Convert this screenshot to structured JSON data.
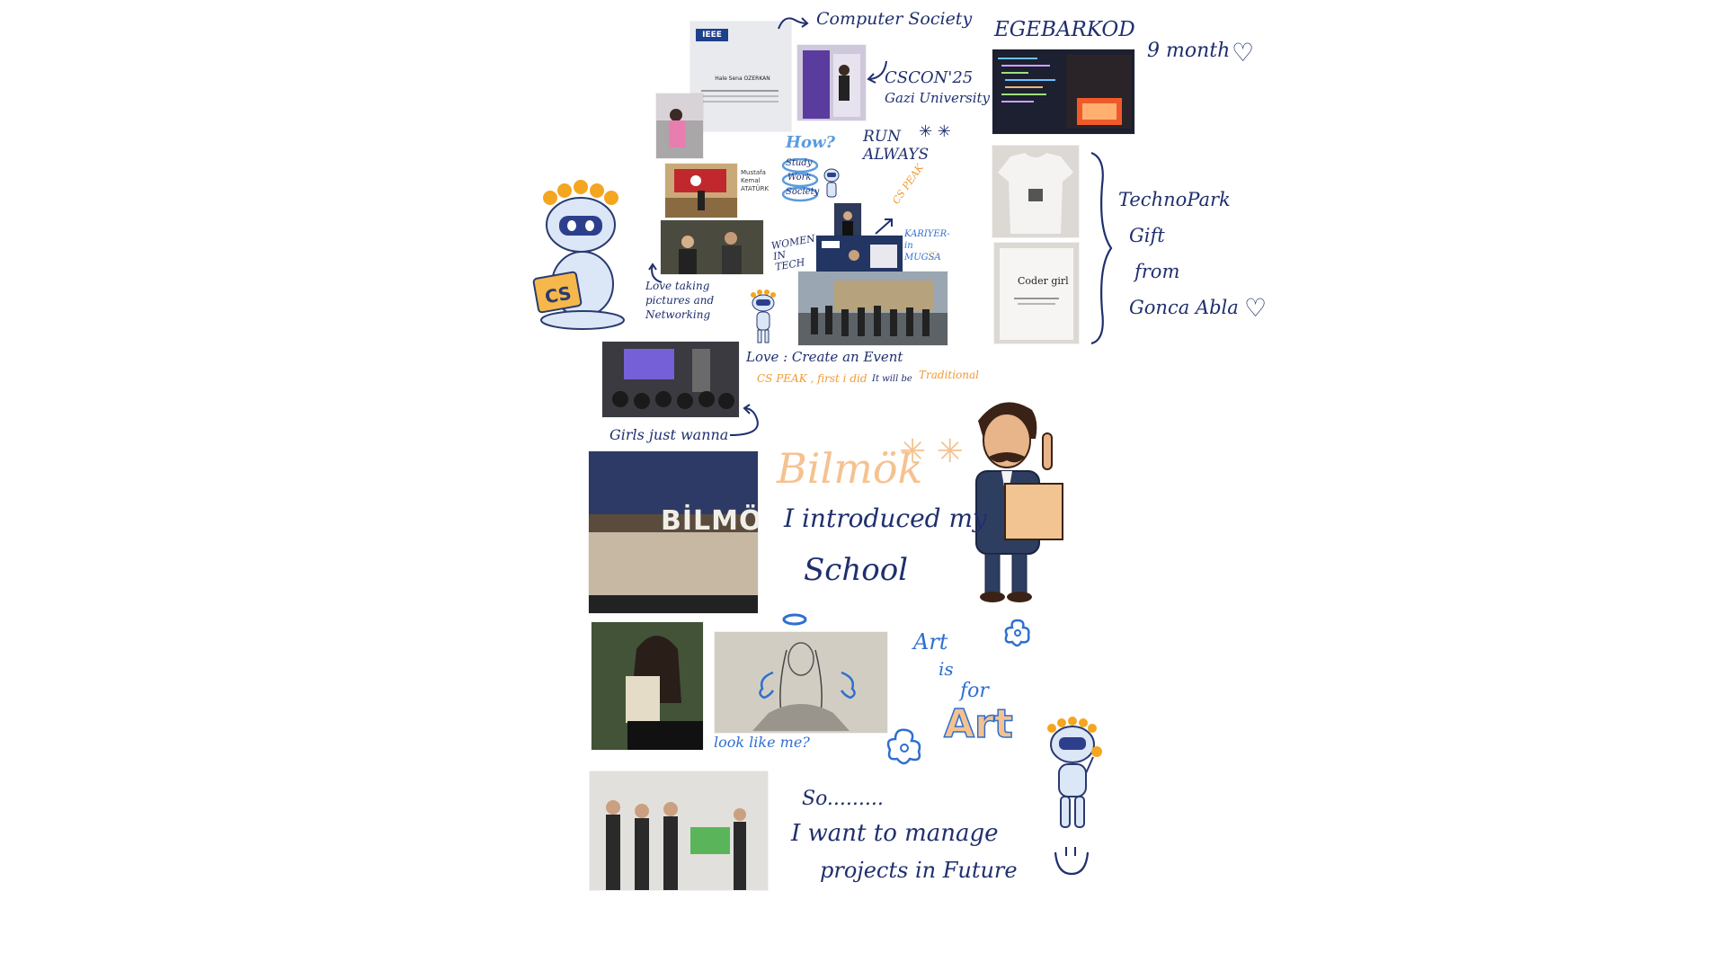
{
  "notes": {
    "computer_society": "Computer Society",
    "cscon": "CSCON'25",
    "gazi": "Gazi University",
    "how": "How?",
    "run_always": "RUN ALWAYS",
    "study": "Study",
    "work": "Work",
    "society": "Society",
    "cspeak_small": "CS PEAK",
    "women_in_tech": "WOMEN IN TECH",
    "kariyer": "KARIYER-in MUGSA",
    "love_pictures": "Love taking pictures and Networking",
    "love_event": "Love : Create an Event",
    "cspeak_first": "CS PEAK , first i did",
    "it_will_be": "It will be",
    "traditional": "Traditional",
    "girls": "Girls just wanna",
    "egebarkod": "EGEBARKOD",
    "nine_month": "9 month",
    "technopark": "TechnoPark",
    "gift": "Gift",
    "from": "from",
    "gonca": "Gonca Abla",
    "bilmok": "Bilmök",
    "introduced": "I introduced my",
    "school": "School",
    "art": "Art",
    "is": "is",
    "for": "for",
    "art_big": "Art",
    "look_like": "look like me?",
    "so": "So.........",
    "manage": "I want to manage",
    "projects": "projects in Future"
  },
  "photos": {
    "ieee_cert_badge": "IEEE",
    "ieee_cert_name": "Hale Sena OZERKAN",
    "bilmok_sign": "BİLMÖ",
    "tshirt_text": "Coder girl",
    "laptop_cs": "CS"
  },
  "colors": {
    "ink": "#1f2f6e",
    "orange": "#f29a33",
    "peach": "#f5c28f",
    "blue": "#2e6fcf",
    "ieee_purple": "#4a3a9a"
  }
}
